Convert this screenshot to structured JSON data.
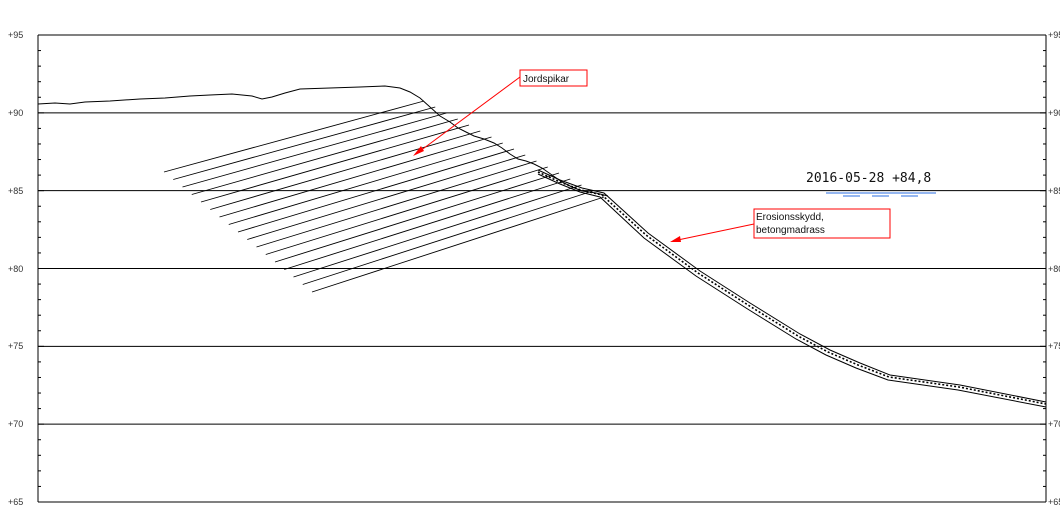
{
  "section": {
    "y_axis": {
      "min": 65,
      "max": 95,
      "labels": [
        "+95",
        "+90",
        "+85",
        "+80",
        "+75",
        "+70",
        "+65"
      ],
      "major_lines": [
        90,
        85,
        80,
        75,
        70
      ]
    },
    "annotations": {
      "soil_nails": "Jordspikar",
      "erosion_protection_line1": "Erosionsskydd,",
      "erosion_protection_line2": "betongmadrass"
    },
    "water_level": {
      "label": "2016-05-28  +84,8",
      "level": 84.8
    }
  },
  "colors": {
    "line": "#000000",
    "callout": "#ff0000",
    "water": "#2a6de0"
  }
}
